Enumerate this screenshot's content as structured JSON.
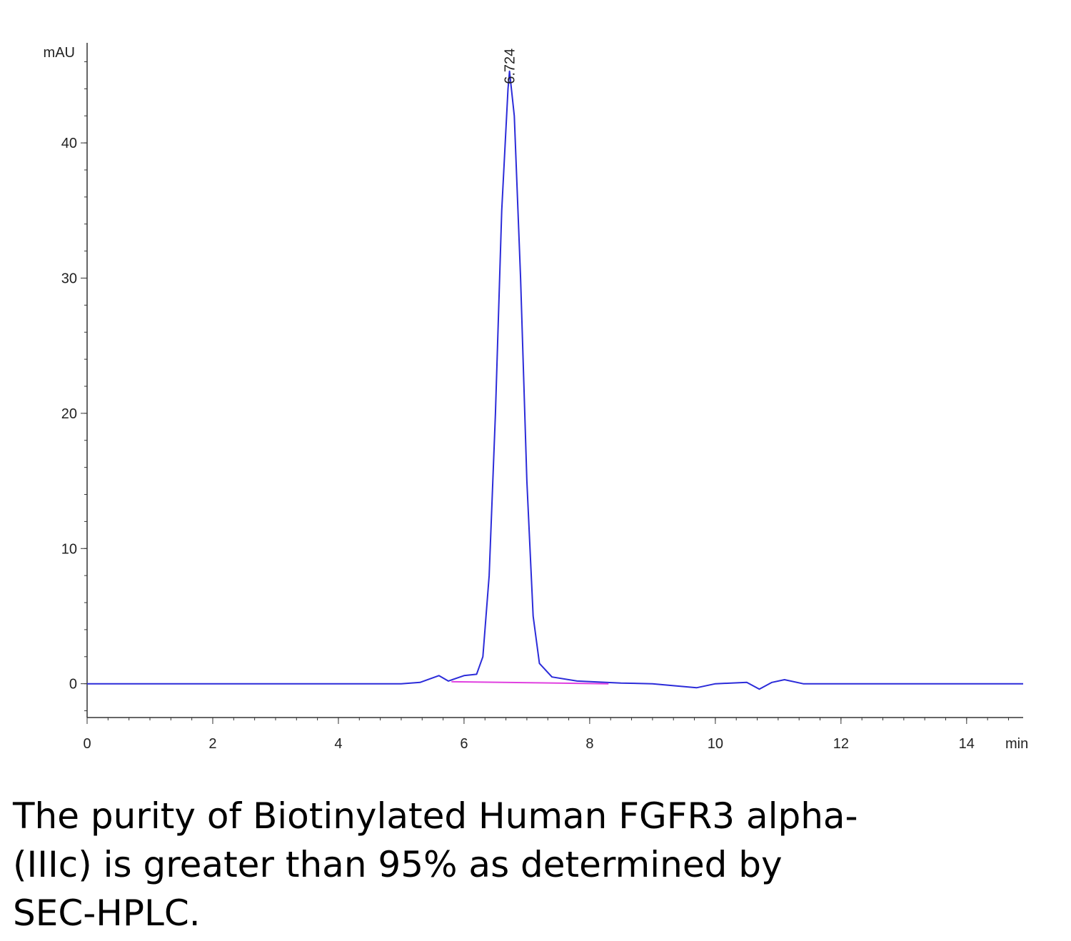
{
  "chart_data": {
    "type": "line",
    "y_label": "mAU",
    "x_label": "min",
    "annotation": {
      "x": 6.724,
      "y": 45.3,
      "label": "6.724"
    },
    "xlim": [
      0,
      14.9
    ],
    "xticks": [
      0,
      2,
      4,
      6,
      8,
      10,
      12,
      14
    ],
    "ylim": [
      -2.5,
      47.4
    ],
    "yticks": [
      0,
      10,
      20,
      30,
      40
    ],
    "series": [
      {
        "color": "#2b2bd9",
        "x": [
          0,
          0.5,
          1,
          2,
          3,
          4,
          5,
          5.3,
          5.6,
          5.75,
          6,
          6.2,
          6.3,
          6.4,
          6.5,
          6.6,
          6.7,
          6.724,
          6.8,
          6.9,
          7.0,
          7.1,
          7.2,
          7.4,
          7.8,
          8.5,
          9,
          9.7,
          10,
          10.5,
          10.7,
          10.9,
          11.1,
          11.4,
          12,
          13,
          14,
          14.9
        ],
        "values": [
          0,
          0,
          0,
          0,
          0,
          0,
          0,
          0.1,
          0.6,
          0.2,
          0.6,
          0.7,
          2,
          8,
          20,
          35,
          44,
          45.3,
          42,
          30,
          15,
          5,
          1.5,
          0.5,
          0.2,
          0.05,
          0,
          -0.3,
          0,
          0.1,
          -0.4,
          0.1,
          0.3,
          0,
          0,
          0,
          0,
          0
        ]
      },
      {
        "color": "#e040e0",
        "x": [
          5.8,
          8.3
        ],
        "values": [
          0.15,
          0
        ]
      }
    ]
  },
  "caption": [
    "The purity of Biotinylated Human FGFR3 alpha-",
    "(IIIc) is greater than 95% as determined by",
    "SEC-HPLC."
  ]
}
